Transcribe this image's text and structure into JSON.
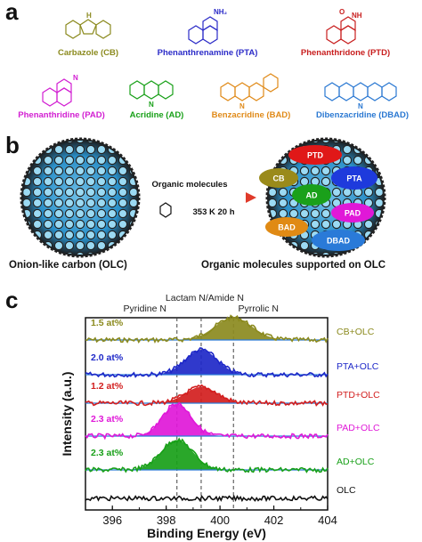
{
  "panels": {
    "a": "a",
    "b": "b",
    "c": "c"
  },
  "molecules": [
    {
      "name": "Carbazole (CB)",
      "color": "#8b8a1e",
      "atom": "H",
      "atom_detail": "N"
    },
    {
      "name": "Phenanthrenamine (PTA)",
      "color": "#2b2bc8",
      "atom": "NH₂"
    },
    {
      "name": "Phenanthridone (PTD)",
      "color": "#c81e1e",
      "atom": "O",
      "atom_detail": "NH"
    },
    {
      "name": "Phenanthridine (PAD)",
      "color": "#d21ed2",
      "atom": "N"
    },
    {
      "name": "Acridine (AD)",
      "color": "#18a018",
      "atom": "N"
    },
    {
      "name": "Benzacridine (BAD)",
      "color": "#e08a18",
      "atom": "N"
    },
    {
      "name": "Dibenzacridine (DBAD)",
      "color": "#2a78d2",
      "atom": "N"
    }
  ],
  "panel_b": {
    "left_caption": "Onion-like carbon (OLC)",
    "right_caption": "Organic molecules supported on OLC",
    "arrow_top": "Organic molecules",
    "arrow_bottom": "353 K  20 h",
    "badges": [
      {
        "label": "PTD",
        "color": "#e01818"
      },
      {
        "label": "CB",
        "color": "#9a8a1a"
      },
      {
        "label": "PTA",
        "color": "#1e3adc"
      },
      {
        "label": "AD",
        "color": "#1aa01a"
      },
      {
        "label": "PAD",
        "color": "#e018d8"
      },
      {
        "label": "BAD",
        "color": "#e08a14"
      },
      {
        "label": "DBAD",
        "color": "#2a7ad8"
      }
    ]
  },
  "chart_data": {
    "type": "line",
    "xlabel": "Binding Energy (eV)",
    "ylabel": "Intensity (a.u.)",
    "xlim": [
      404,
      395
    ],
    "x_reversed": true,
    "x_ticks": [
      "396",
      "398",
      "400",
      "402",
      "404"
    ],
    "reference_lines": [
      {
        "label": "Pyridine N",
        "x": 398.4
      },
      {
        "label": "Lactam N/Amide N",
        "x": 399.3
      },
      {
        "label": "Pyrrolic N",
        "x": 400.5
      }
    ],
    "series": [
      {
        "name": "CB+OLC",
        "atpct": "1.5 at%",
        "color": "#8b8a1e",
        "peak": 400.5,
        "width": 1.1,
        "height": 0.9
      },
      {
        "name": "PTA+OLC",
        "atpct": "2.0 at%",
        "color": "#1e28c8",
        "peak": 399.3,
        "width": 0.95,
        "height": 1.0
      },
      {
        "name": "PTD+OLC",
        "atpct": "1.2 at%",
        "color": "#d21e1e",
        "peak": 399.3,
        "width": 0.95,
        "height": 0.65
      },
      {
        "name": "PAD+OLC",
        "atpct": "2.3 at%",
        "color": "#e018d8",
        "peak": 398.4,
        "width": 0.85,
        "height": 1.3
      },
      {
        "name": "AD+OLC",
        "atpct": "2.3 at%",
        "color": "#18a018",
        "peak": 398.4,
        "width": 0.95,
        "height": 1.2
      },
      {
        "name": "OLC",
        "atpct": "",
        "color": "#111111",
        "peak": null,
        "width": 0,
        "height": 0
      }
    ]
  }
}
